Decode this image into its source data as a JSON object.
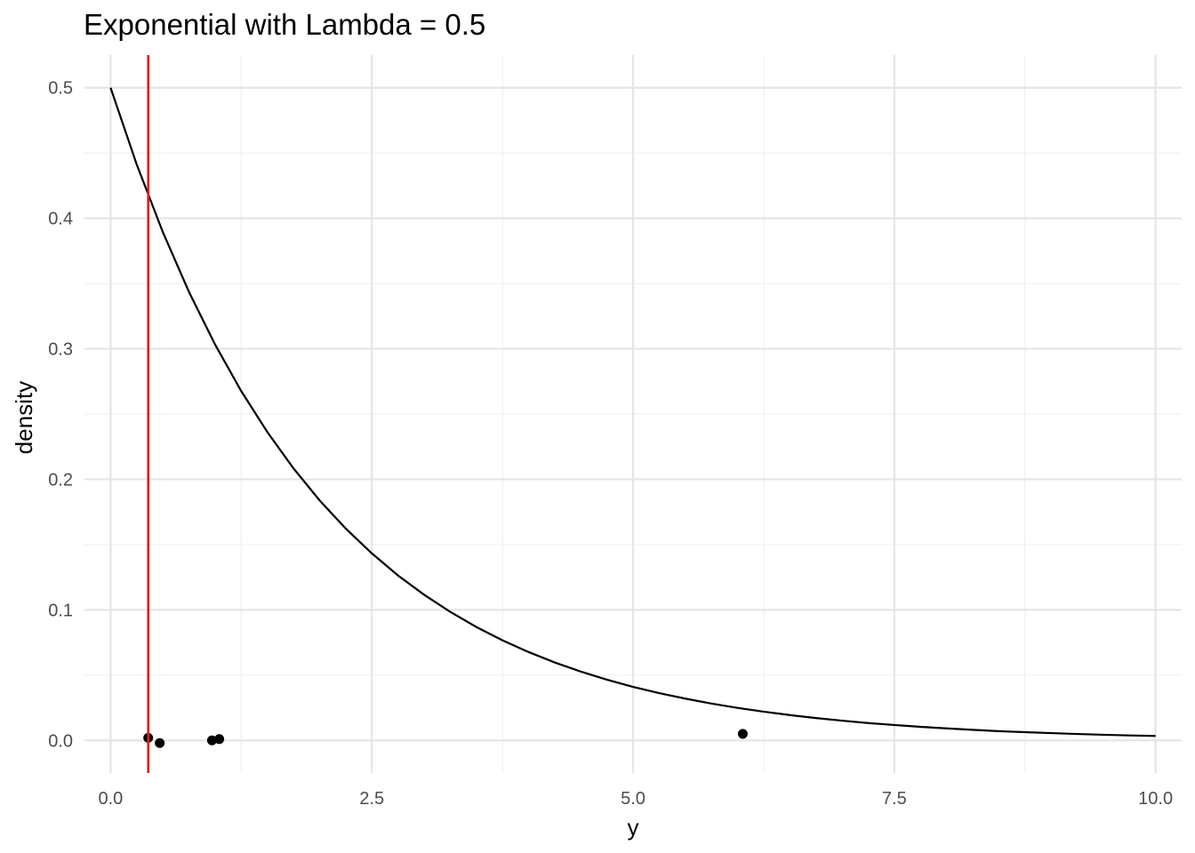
{
  "chart_data": {
    "type": "line",
    "title": "Exponential with Lambda = 0.5",
    "xlabel": "y",
    "ylabel": "density",
    "xlim": [
      -0.25,
      10.25
    ],
    "ylim": [
      -0.025,
      0.525
    ],
    "grid": true,
    "x_ticks": [
      0,
      2.5,
      5,
      7.5,
      10
    ],
    "x_tick_labels": [
      "0.0",
      "2.5",
      "5.0",
      "7.5",
      "10.0"
    ],
    "y_ticks": [
      0,
      0.1,
      0.2,
      0.3,
      0.4,
      0.5
    ],
    "y_tick_labels": [
      "0.0",
      "0.1",
      "0.2",
      "0.3",
      "0.4",
      "0.5"
    ],
    "series": [
      {
        "type": "line",
        "color": "#000000",
        "x": [
          0,
          0.25,
          0.5,
          0.75,
          1,
          1.25,
          1.5,
          1.75,
          2,
          2.25,
          2.5,
          2.75,
          3,
          3.25,
          3.5,
          3.75,
          4,
          4.25,
          4.5,
          4.75,
          5,
          5.25,
          5.5,
          5.75,
          6,
          6.25,
          6.5,
          6.75,
          7,
          7.25,
          7.5,
          7.75,
          8,
          8.25,
          8.5,
          8.75,
          9,
          9.25,
          9.5,
          9.75,
          10
        ],
        "values": [
          0.5,
          0.4412,
          0.3894,
          0.3436,
          0.3033,
          0.2676,
          0.2362,
          0.2084,
          0.1839,
          0.1623,
          0.1433,
          0.1264,
          0.1116,
          0.0985,
          0.0869,
          0.0767,
          0.0677,
          0.0597,
          0.0527,
          0.0465,
          0.041,
          0.0362,
          0.032,
          0.0282,
          0.0249,
          0.022,
          0.0194,
          0.0171,
          0.0151,
          0.0133,
          0.0118,
          0.0104,
          0.0092,
          0.0081,
          0.0071,
          0.0063,
          0.0056,
          0.0049,
          0.0043,
          0.0038,
          0.0034
        ]
      },
      {
        "type": "scatter",
        "color": "#000000",
        "x": [
          0.36,
          0.47,
          0.97,
          1.04,
          6.05
        ],
        "values": [
          0.002,
          -0.002,
          0.0,
          0.001,
          0.005
        ]
      }
    ],
    "vline": {
      "x": 0.36,
      "color": "#e41a1c"
    },
    "colors": {
      "grid_major": "#e5e5e5",
      "grid_minor": "#f0f0f0",
      "curve": "#000000",
      "points": "#000000",
      "vline": "#e41a1c",
      "tick_text": "#4d4d4d"
    }
  }
}
